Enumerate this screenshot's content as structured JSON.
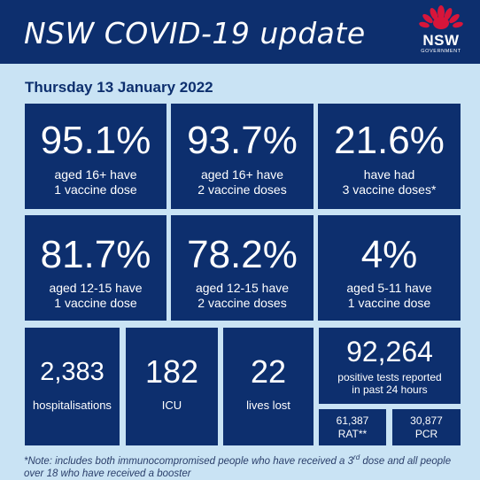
{
  "header": {
    "title": "NSW COVID-19 update",
    "logo_name": "NSW",
    "logo_sub": "GOVERNMENT"
  },
  "date": "Thursday 13 January 2022",
  "vaccination": [
    {
      "value": "95.1%",
      "line1": "aged 16+ have",
      "line2": "1 vaccine dose"
    },
    {
      "value": "93.7%",
      "line1": "aged 16+ have",
      "line2": "2 vaccine doses"
    },
    {
      "value": "21.6%",
      "line1": "have had",
      "line2": "3 vaccine doses*"
    },
    {
      "value": "81.7%",
      "line1": "aged 12-15 have",
      "line2": "1 vaccine dose"
    },
    {
      "value": "78.2%",
      "line1": "aged 12-15 have",
      "line2": "2 vaccine doses"
    },
    {
      "value": "4%",
      "line1": "aged 5-11 have",
      "line2": "1 vaccine dose"
    }
  ],
  "stats": {
    "hospitalisations": {
      "value": "2,383",
      "label": "hospitalisations"
    },
    "icu": {
      "value": "182",
      "label": "ICU"
    },
    "deaths": {
      "value": "22",
      "label": "lives lost"
    },
    "tests": {
      "value": "92,264",
      "line1": "positive tests reported",
      "line2": "in past 24 hours"
    },
    "rat": {
      "value": "61,387",
      "label": "RAT**"
    },
    "pcr": {
      "value": "30,877",
      "label": "PCR"
    }
  },
  "note": {
    "part1": "*Note: includes both immunocompromised people who have received a 3",
    "sup": "rd",
    "part2": " dose and all people over 18 who have received a booster"
  },
  "colors": {
    "navy": "#0d2f6e",
    "background": "#c9e3f4",
    "waratah_red": "#d7153a"
  },
  "icons": {
    "logo": "waratah-flower-icon"
  }
}
